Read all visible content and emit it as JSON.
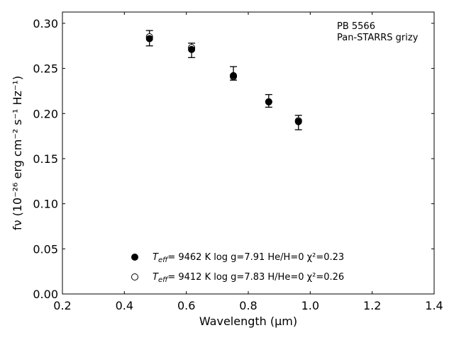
{
  "chart_data": {
    "type": "scatter",
    "xlabel": "Wavelength (μm)",
    "ylabel": "fν (10⁻²⁶ erg cm⁻² s⁻¹ Hz⁻¹)",
    "xlim": [
      0.2,
      1.4
    ],
    "ylim": [
      0.0,
      0.3125
    ],
    "x_ticks": [
      "0.2",
      "0.4",
      "0.6",
      "0.8",
      "1.0",
      "1.2",
      "1.4"
    ],
    "y_ticks": [
      "0.00",
      "0.05",
      "0.10",
      "0.15",
      "0.20",
      "0.25",
      "0.30"
    ],
    "annotation": [
      "PB 5566",
      "Pan-STARRS grizy"
    ],
    "legend_placement": "bottom-center",
    "series": [
      {
        "marker": "filled-circle",
        "label": {
          "teff_symbol": "T",
          "teff_subscript": "eff",
          "text": "=  9462 K  log g=7.91  He/H=0  χ²=0.23"
        },
        "x": [
          0.481,
          0.617,
          0.752,
          0.866,
          0.962
        ],
        "y": [
          0.283,
          0.271,
          0.242,
          0.213,
          0.191
        ]
      },
      {
        "marker": "open-circle",
        "label": {
          "teff_symbol": "T",
          "teff_subscript": "eff",
          "text": "=  9412 K  log g=7.83  H/He=0  χ²=0.26"
        },
        "x": [
          0.481,
          0.617,
          0.752,
          0.866,
          0.962
        ],
        "y": [
          0.285,
          0.273,
          0.241,
          0.213,
          0.192
        ]
      }
    ],
    "observations": {
      "marker": "errorbar",
      "x": [
        0.481,
        0.617,
        0.752,
        0.866,
        0.962
      ],
      "y": [
        0.283,
        0.27,
        0.244,
        0.214,
        0.19
      ],
      "yerr_low": [
        0.008,
        0.008,
        0.007,
        0.007,
        0.008
      ],
      "yerr_high": [
        0.009,
        0.008,
        0.008,
        0.007,
        0.008
      ]
    },
    "colors": {
      "axis": "#000000",
      "marker": "#000000",
      "background": "#ffffff"
    }
  }
}
